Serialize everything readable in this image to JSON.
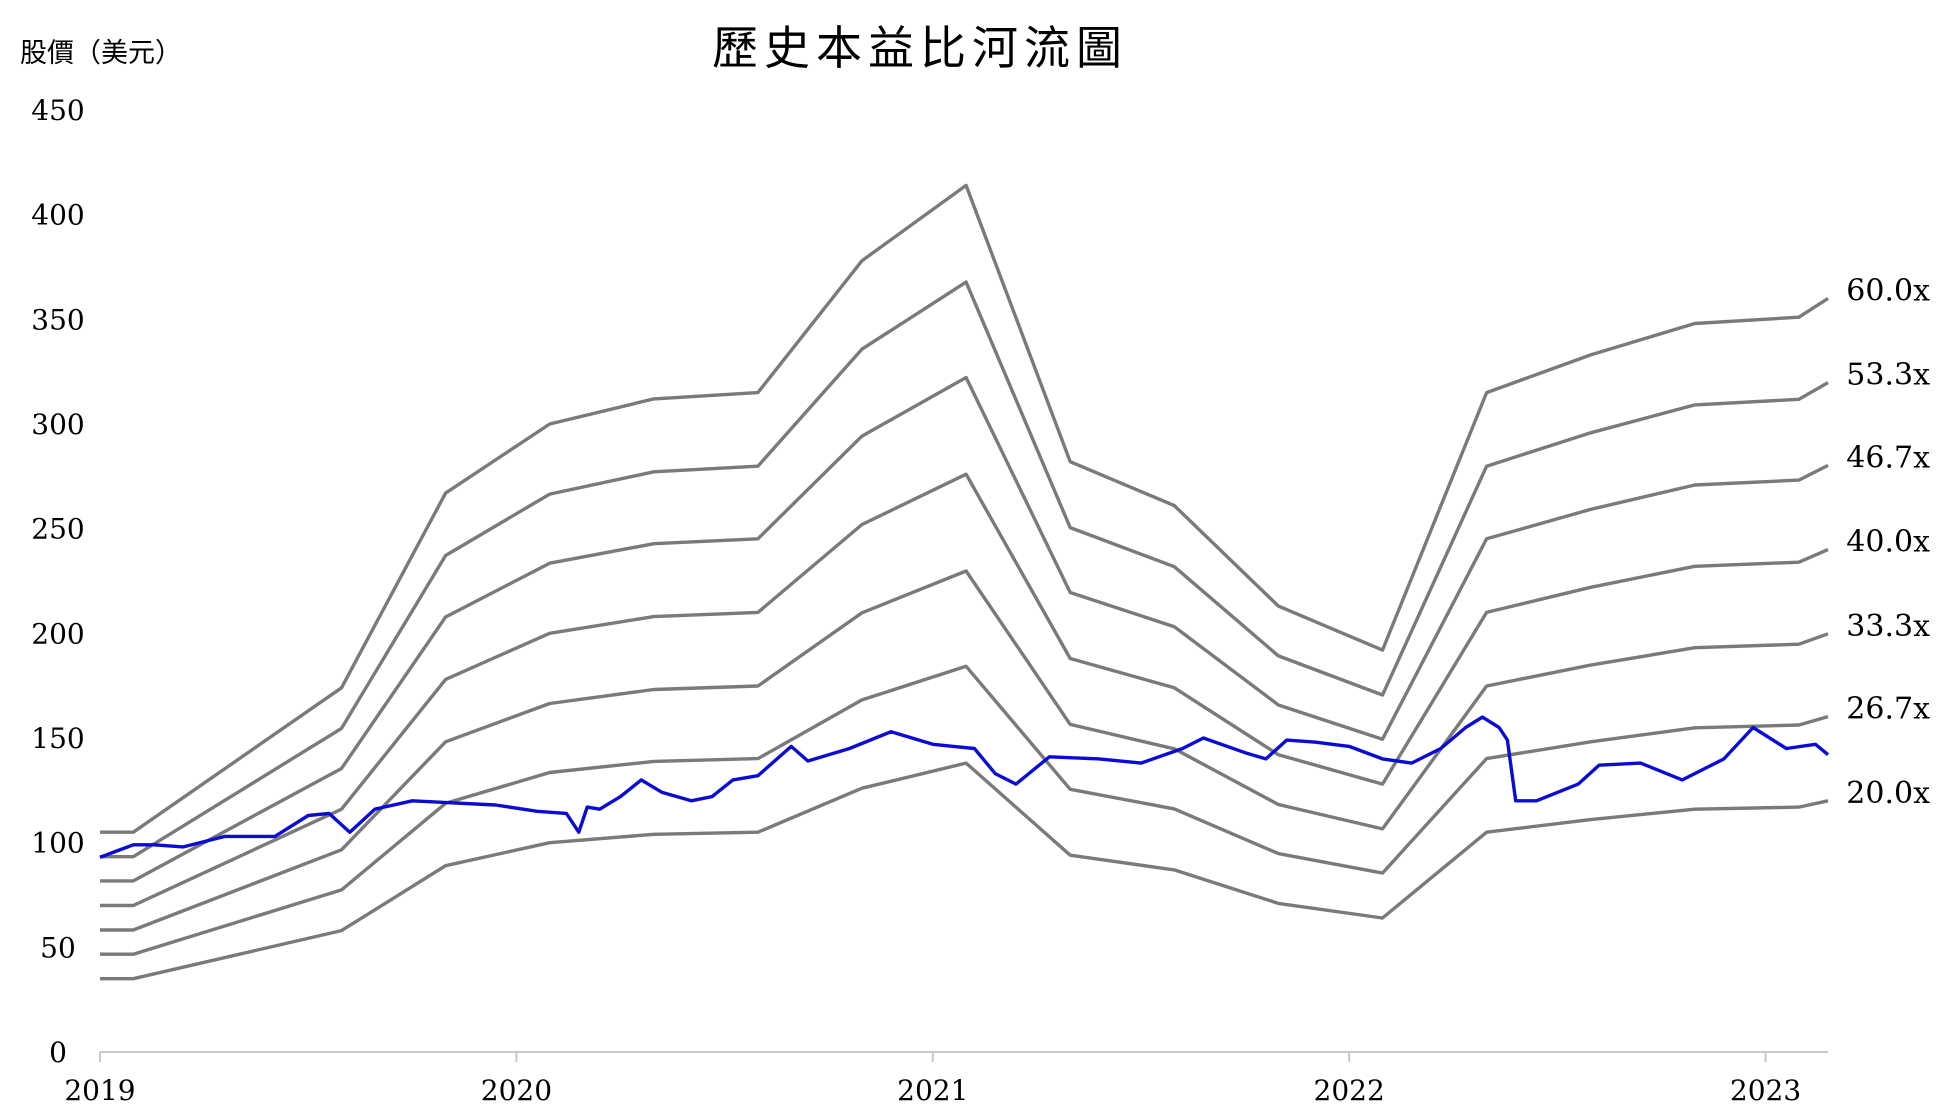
{
  "chart_data": {
    "type": "line",
    "title": "歷史本益比河流圖",
    "ylabel": "股價（美元）",
    "xlabel": "",
    "ylim": [
      0,
      450
    ],
    "xlim": [
      2019.0,
      2023.15
    ],
    "yticks": [
      0,
      50,
      100,
      150,
      200,
      250,
      300,
      350,
      400,
      450
    ],
    "xticks": [
      2019,
      2020,
      2021,
      2022,
      2023
    ],
    "grid": false,
    "legend": "none",
    "colors": {
      "bands": "#7a7a7a",
      "price": "#0b0bd6",
      "axis": "#c8c8c8"
    },
    "multiples": [
      "60.0x",
      "53.3x",
      "46.7x",
      "40.0x",
      "33.3x",
      "26.7x",
      "20.0x"
    ],
    "eps_base": {
      "x": [
        2019.0,
        2019.08,
        2019.58,
        2019.83,
        2020.08,
        2020.33,
        2020.58,
        2020.83,
        2021.08,
        2021.33,
        2021.58,
        2021.83,
        2022.08,
        2022.33,
        2022.58,
        2022.83,
        2023.08,
        2023.15
      ],
      "pe20": [
        35,
        35,
        58,
        89,
        100,
        104,
        105,
        126,
        138,
        94,
        87,
        71,
        64,
        105,
        111,
        116,
        117,
        120
      ]
    },
    "series": [
      {
        "x": [
          2019.0,
          2019.04,
          2019.08,
          2019.13,
          2019.2,
          2019.3,
          2019.42,
          2019.5,
          2019.55,
          2019.6,
          2019.66,
          2019.75,
          2019.85,
          2019.95,
          2020.05,
          2020.12,
          2020.15,
          2020.17,
          2020.2,
          2020.25,
          2020.3,
          2020.35,
          2020.42,
          2020.47,
          2020.52,
          2020.58,
          2020.66,
          2020.7,
          2020.8,
          2020.9,
          2021.0,
          2021.05,
          2021.1,
          2021.15,
          2021.2,
          2021.28,
          2021.4,
          2021.5,
          2021.6,
          2021.65,
          2021.75,
          2021.8,
          2021.85,
          2021.92,
          2022.0,
          2022.08,
          2022.15,
          2022.22,
          2022.28,
          2022.32,
          2022.36,
          2022.38,
          2022.4,
          2022.45,
          2022.55,
          2022.6,
          2022.7,
          2022.8,
          2022.9,
          2022.97,
          2023.05,
          2023.12,
          2023.15
        ],
        "values": [
          93,
          96,
          99,
          99,
          98,
          103,
          103,
          113,
          114,
          105,
          116,
          120,
          119,
          118,
          115,
          114,
          105,
          117,
          116,
          122,
          130,
          124,
          120,
          122,
          130,
          132,
          146,
          139,
          145,
          153,
          147,
          146,
          145,
          133,
          128,
          141,
          140,
          138,
          145,
          150,
          143,
          140,
          149,
          148,
          146,
          140,
          138,
          145,
          155,
          160,
          155,
          149,
          120,
          120,
          128,
          137,
          138,
          130,
          140,
          155,
          145,
          147,
          142
        ]
      }
    ]
  }
}
